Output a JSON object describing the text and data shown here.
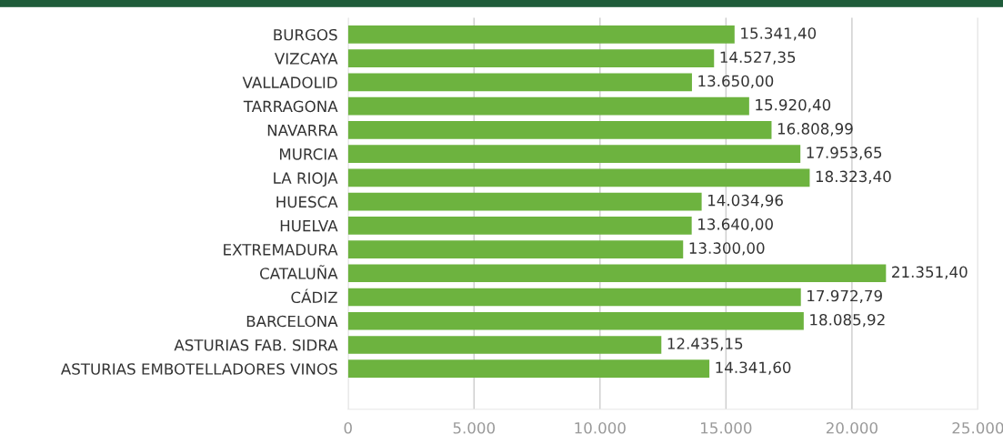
{
  "chart_data": {
    "type": "bar",
    "orientation": "horizontal",
    "categories": [
      "BURGOS",
      "VIZCAYA",
      "VALLADOLID",
      "TARRAGONA",
      "NAVARRA",
      "MURCIA",
      "LA RIOJA",
      "HUESCA",
      "HUELVA",
      "EXTREMADURA",
      "CATALUÑA",
      "CÁDIZ",
      "BARCELONA",
      "ASTURIAS FAB. SIDRA",
      "ASTURIAS EMBOTELLADORES VINOS"
    ],
    "values": [
      15341.4,
      14527.35,
      13650.0,
      15920.4,
      16808.99,
      17953.65,
      18323.4,
      14034.96,
      13640.0,
      13300.0,
      21351.4,
      17972.79,
      18085.92,
      12435.15,
      14341.6
    ],
    "value_labels": [
      "15.341,40",
      "14.527,35",
      "13.650,00",
      "15.920,40",
      "16.808,99",
      "17.953,65",
      "18.323,40",
      "14.034,96",
      "13.640,00",
      "13.300,00",
      "21.351,40",
      "17.972,79",
      "18.085,92",
      "12.435,15",
      "14.341,60"
    ],
    "color": "#6db33f",
    "xlim": [
      0,
      25000
    ],
    "xticks": [
      0,
      {
        "value": 5000,
        "label": "5.000"
      },
      {
        "value": 10000,
        "label": "10.000"
      },
      {
        "value": 15000,
        "label": "15.000"
      },
      {
        "value": 20000,
        "label": "20.000"
      },
      {
        "value": 25000,
        "label": "25.000"
      }
    ],
    "grid": "x",
    "legend": false
  }
}
